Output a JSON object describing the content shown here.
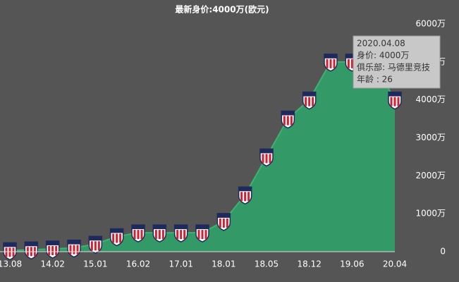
{
  "chart_data": {
    "type": "area",
    "title": "最新身价:4000万(欧元)",
    "categories": [
      "13.08",
      null,
      "14.02",
      null,
      "15.01",
      null,
      "16.02",
      null,
      "17.01",
      null,
      "18.01",
      null,
      "18.05",
      null,
      "18.12",
      null,
      "19.06",
      null,
      "20.04"
    ],
    "series": [
      {
        "color": "#339966",
        "values": [
          30,
          50,
          75,
          100,
          200,
          400,
          500,
          500,
          500,
          500,
          800,
          1500,
          2500,
          3500,
          4000,
          5000,
          5000,
          5000,
          4000
        ]
      }
    ],
    "ylim": [
      0,
      6000
    ],
    "yticks": [
      0,
      {
        "value": 1000,
        "label": "1000万"
      },
      {
        "value": 2000,
        "label": "2000万"
      },
      {
        "value": 3000,
        "label": "3000万"
      },
      {
        "value": 4000,
        "label": "4000万"
      },
      {
        "value": 5000,
        "label": "5000万"
      },
      {
        "value": 6000,
        "label": "6000万"
      }
    ],
    "tooltip": [
      "2020.04.08",
      "身价: 4000万",
      "俱乐部: 马德里竞技",
      "年龄 : 26"
    ]
  }
}
